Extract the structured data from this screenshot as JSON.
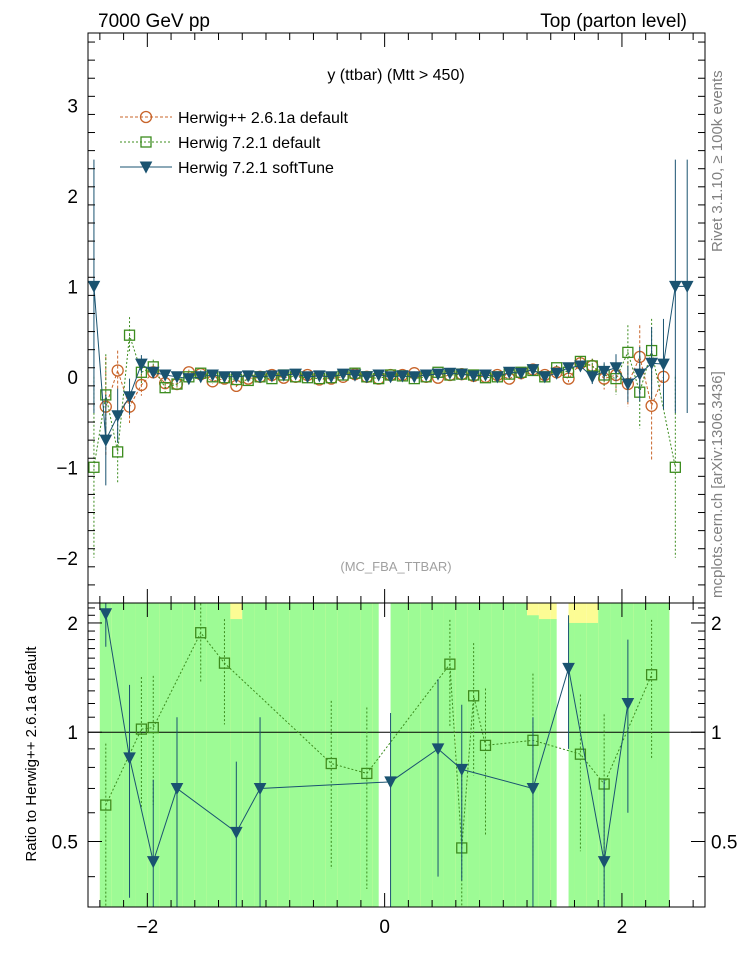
{
  "header": {
    "left": "7000 GeV pp",
    "right": "Top (parton level)"
  },
  "side_labels": {
    "right_top": "Rivet 3.1.10, ≥ 100k events",
    "right_bottom": "mcplots.cern.ch [arXiv:1306.3436]"
  },
  "colors": {
    "herwigpp": "#c8642a",
    "herwig7_default": "#3c8c1e",
    "herwig7_softtune": "#1a5370",
    "band_green": "#9dfb95",
    "band_yellow": "#fcfc94",
    "watermark": "#a0a0a0"
  },
  "chart_data": [
    {
      "type": "line",
      "title": "y (ttbar) (Mtt > 450)",
      "watermark": "(MC_FBA_TTBAR)",
      "xlim": [
        -2.5,
        2.7
      ],
      "ylim": [
        -2.5,
        3.8
      ],
      "y_ticks": [
        -2,
        -1,
        0,
        1,
        2,
        3
      ],
      "x_ticks": [
        -2,
        0,
        2
      ],
      "legend_position": "top-left",
      "series": [
        {
          "name": "Herwig++ 2.6.1a default",
          "marker": "circle",
          "x": [
            -2.35,
            -2.25,
            -2.15,
            -2.05,
            -1.95,
            -1.85,
            -1.75,
            -1.65,
            -1.55,
            -1.45,
            -1.35,
            -1.25,
            -1.15,
            -1.05,
            -0.95,
            -0.85,
            -0.75,
            -0.65,
            -0.55,
            -0.45,
            -0.35,
            -0.25,
            -0.15,
            -0.05,
            0.05,
            0.15,
            0.25,
            0.35,
            0.45,
            0.55,
            0.65,
            0.75,
            0.85,
            0.95,
            1.05,
            1.15,
            1.25,
            1.35,
            1.45,
            1.55,
            1.65,
            1.75,
            1.85,
            1.95,
            2.05,
            2.15,
            2.25,
            2.35
          ],
          "y": [
            -0.33,
            0.07,
            -0.33,
            -0.09,
            0.05,
            -0.07,
            -0.08,
            0.05,
            0.03,
            -0.05,
            -0.02,
            -0.1,
            -0.02,
            0.0,
            0.02,
            -0.01,
            0.0,
            0.02,
            -0.03,
            -0.02,
            0.0,
            0.03,
            0.0,
            -0.02,
            0.02,
            0.02,
            0.04,
            0.0,
            -0.01,
            0.02,
            0.03,
            0.01,
            0.0,
            0.02,
            -0.02,
            0.04,
            0.08,
            0.02,
            0.05,
            -0.02,
            0.15,
            0.12,
            -0.02,
            0.02,
            -0.08,
            0.22,
            -0.32,
            0.0
          ],
          "err": [
            0.55,
            0.22,
            0.18,
            0.12,
            0.08,
            0.05,
            0.04,
            0.03,
            0.03,
            0.03,
            0.02,
            0.02,
            0.02,
            0.02,
            0.02,
            0.02,
            0.02,
            0.02,
            0.02,
            0.02,
            0.02,
            0.02,
            0.02,
            0.02,
            0.02,
            0.02,
            0.02,
            0.02,
            0.02,
            0.02,
            0.02,
            0.02,
            0.02,
            0.02,
            0.02,
            0.02,
            0.03,
            0.03,
            0.03,
            0.04,
            0.05,
            0.08,
            0.12,
            0.18,
            0.25,
            0.35,
            0.6,
            0.0
          ]
        },
        {
          "name": "Herwig 7.2.1 default",
          "marker": "square",
          "x": [
            -2.45,
            -2.35,
            -2.25,
            -2.15,
            -2.05,
            -1.95,
            -1.85,
            -1.75,
            -1.65,
            -1.55,
            -1.45,
            -1.35,
            -1.25,
            -1.15,
            -1.05,
            -0.95,
            -0.85,
            -0.75,
            -0.65,
            -0.55,
            -0.45,
            -0.35,
            -0.25,
            -0.15,
            -0.05,
            0.05,
            0.15,
            0.25,
            0.35,
            0.45,
            0.55,
            0.65,
            0.75,
            0.85,
            0.95,
            1.05,
            1.15,
            1.25,
            1.35,
            1.45,
            1.55,
            1.65,
            1.75,
            1.85,
            1.95,
            2.05,
            2.15,
            2.25,
            2.45
          ],
          "y": [
            -1.0,
            -0.2,
            -0.83,
            0.46,
            0.05,
            0.11,
            -0.12,
            -0.08,
            0.0,
            0.04,
            0.0,
            -0.01,
            -0.03,
            -0.04,
            0.0,
            -0.02,
            0.02,
            0.0,
            -0.01,
            -0.02,
            -0.01,
            0.02,
            0.04,
            0.0,
            -0.02,
            0.02,
            0.01,
            -0.02,
            0.0,
            0.05,
            0.02,
            0.03,
            0.02,
            -0.01,
            0.0,
            0.03,
            0.05,
            0.07,
            0.0,
            0.1,
            0.05,
            0.17,
            0.12,
            0.02,
            -0.02,
            0.27,
            -0.17,
            0.29,
            -1.0
          ],
          "err": [
            1.0,
            0.45,
            0.35,
            0.2,
            0.12,
            0.08,
            0.05,
            0.04,
            0.03,
            0.03,
            0.03,
            0.02,
            0.02,
            0.02,
            0.02,
            0.02,
            0.02,
            0.02,
            0.02,
            0.02,
            0.02,
            0.02,
            0.02,
            0.02,
            0.02,
            0.02,
            0.02,
            0.02,
            0.02,
            0.02,
            0.02,
            0.02,
            0.02,
            0.02,
            0.02,
            0.02,
            0.02,
            0.03,
            0.03,
            0.03,
            0.04,
            0.05,
            0.08,
            0.12,
            0.18,
            0.3,
            0.4,
            0.35,
            1.0
          ]
        },
        {
          "name": "Herwig 7.2.1 softTune",
          "marker": "triangle-down",
          "x": [
            -2.45,
            -2.35,
            -2.25,
            -2.15,
            -2.05,
            -1.95,
            -1.85,
            -1.75,
            -1.65,
            -1.55,
            -1.45,
            -1.35,
            -1.25,
            -1.15,
            -1.05,
            -0.95,
            -0.85,
            -0.75,
            -0.65,
            -0.55,
            -0.45,
            -0.35,
            -0.25,
            -0.15,
            -0.05,
            0.05,
            0.15,
            0.25,
            0.35,
            0.45,
            0.55,
            0.65,
            0.75,
            0.85,
            0.95,
            1.05,
            1.15,
            1.25,
            1.35,
            1.45,
            1.55,
            1.65,
            1.75,
            1.85,
            1.95,
            2.05,
            2.15,
            2.25,
            2.35,
            2.45,
            2.55
          ],
          "y": [
            1.0,
            -0.7,
            -0.43,
            -0.22,
            0.14,
            0.05,
            0.02,
            0.0,
            -0.02,
            0.0,
            0.02,
            0.0,
            0.0,
            0.01,
            0.0,
            0.01,
            0.02,
            0.03,
            0.0,
            0.01,
            0.0,
            0.03,
            0.02,
            0.0,
            0.02,
            0.0,
            0.01,
            0.0,
            0.02,
            0.03,
            0.04,
            0.03,
            0.01,
            0.02,
            0.0,
            0.05,
            0.04,
            0.08,
            0.0,
            0.04,
            0.1,
            0.12,
            0.0,
            0.06,
            0.1,
            -0.08,
            0.03,
            0.15,
            0.14,
            1.0,
            1.0
          ],
          "err": [
            1.4,
            0.5,
            0.3,
            0.2,
            0.1,
            0.06,
            0.05,
            0.04,
            0.03,
            0.03,
            0.03,
            0.02,
            0.02,
            0.02,
            0.02,
            0.02,
            0.02,
            0.02,
            0.02,
            0.02,
            0.02,
            0.02,
            0.02,
            0.02,
            0.02,
            0.02,
            0.02,
            0.02,
            0.02,
            0.02,
            0.02,
            0.02,
            0.02,
            0.02,
            0.02,
            0.02,
            0.02,
            0.03,
            0.03,
            0.03,
            0.04,
            0.05,
            0.08,
            0.1,
            0.15,
            0.2,
            0.3,
            0.4,
            0.5,
            1.4,
            1.4
          ]
        }
      ]
    },
    {
      "type": "line",
      "ylabel": "Ratio to Herwig++ 2.6.1a default",
      "xlim": [
        -2.5,
        2.7
      ],
      "ylim": [
        0.33,
        2.27
      ],
      "y_ticks": [
        0.5,
        1,
        2
      ],
      "x_ticks": [
        -2,
        0,
        2
      ],
      "reference": 1,
      "band": {
        "x_edges": [
          -2.4,
          -2.3,
          -2.2,
          -2.1,
          -2.0,
          -1.9,
          -1.8,
          -1.7,
          -1.6,
          -1.5,
          -1.4,
          -1.3,
          -1.2,
          -1.1,
          -1.0,
          -0.9,
          -0.8,
          -0.7,
          -0.6,
          -0.5,
          -0.4,
          -0.3,
          -0.2,
          -0.1,
          0.0,
          0.1,
          0.2,
          0.3,
          0.4,
          0.5,
          0.6,
          0.7,
          0.8,
          0.9,
          1.0,
          1.1,
          1.2,
          1.3,
          1.4,
          1.5,
          1.6,
          1.7,
          1.8,
          1.9,
          2.0,
          2.1,
          2.2,
          2.3,
          2.4
        ],
        "green_upper": [
          2.3,
          2.3,
          2.3,
          2.3,
          2.3,
          2.3,
          2.3,
          2.3,
          2.3,
          2.3,
          2.3,
          2.05,
          2.3,
          2.3,
          2.3,
          2.3,
          2.3,
          2.3,
          2.3,
          2.3,
          2.3,
          2.3,
          2.3,
          2.3,
          2.3,
          2.3,
          2.3,
          2.3,
          2.3,
          2.3,
          2.3,
          2.3,
          2.3,
          2.3,
          2.3,
          2.3,
          2.1,
          2.05,
          2.05,
          2.0,
          2.0,
          2.0,
          2.3,
          2.3,
          2.3,
          2.3,
          2.3,
          2.3
        ],
        "yellow_upper": [
          2.3,
          2.3,
          2.3,
          2.3,
          2.3,
          2.3,
          2.3,
          2.3,
          2.3,
          2.3,
          2.3,
          2.3,
          2.3,
          2.3,
          2.3,
          2.3,
          2.3,
          2.3,
          2.3,
          2.3,
          2.3,
          2.3,
          2.3,
          2.3,
          2.3,
          2.3,
          2.3,
          2.3,
          2.3,
          2.3,
          2.3,
          2.3,
          2.3,
          2.3,
          2.3,
          2.3,
          2.3,
          2.3,
          2.3,
          2.3,
          2.3,
          2.3,
          2.3,
          2.3,
          2.3,
          2.3,
          2.3,
          2.3
        ]
      },
      "series": [
        {
          "name": "Herwig 7.2.1 default",
          "marker": "square",
          "x": [
            -2.35,
            -2.05,
            -1.95,
            -1.55,
            -1.35,
            -0.45,
            -0.15,
            0.55,
            0.65,
            0.75,
            0.85,
            1.25,
            1.65,
            1.85,
            2.25
          ],
          "y": [
            0.63,
            1.02,
            1.03,
            1.88,
            1.55,
            0.82,
            0.77,
            1.54,
            0.48,
            1.26,
            0.92,
            0.95,
            0.87,
            0.72,
            1.44
          ],
          "err": [
            0.3,
            0.4,
            0.4,
            0.5,
            0.5,
            0.4,
            0.4,
            0.5,
            0.3,
            0.5,
            0.4,
            0.5,
            0.4,
            0.4,
            0.6
          ]
        },
        {
          "name": "Herwig 7.2.1 softTune",
          "marker": "triangle-down",
          "x": [
            -2.35,
            -2.15,
            -1.95,
            -1.75,
            -1.25,
            -1.05,
            0.05,
            0.45,
            0.65,
            1.25,
            1.55,
            1.85,
            2.05
          ],
          "y": [
            2.12,
            0.85,
            0.44,
            0.7,
            0.53,
            0.7,
            0.73,
            0.9,
            0.79,
            0.7,
            1.5,
            0.44,
            1.2
          ],
          "err": [
            0.4,
            0.5,
            0.3,
            0.4,
            0.3,
            0.4,
            0.4,
            0.5,
            0.4,
            0.4,
            0.6,
            0.3,
            0.6
          ]
        }
      ]
    }
  ]
}
